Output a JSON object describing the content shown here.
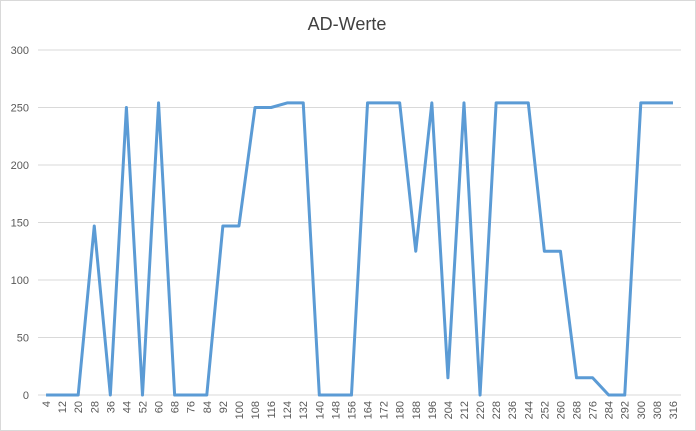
{
  "chart_data": {
    "type": "line",
    "title": "AD-Werte",
    "categories": [
      4,
      12,
      20,
      28,
      36,
      44,
      52,
      60,
      68,
      76,
      84,
      92,
      100,
      108,
      116,
      124,
      132,
      140,
      148,
      156,
      164,
      172,
      180,
      188,
      196,
      204,
      212,
      220,
      228,
      236,
      244,
      252,
      260,
      268,
      276,
      284,
      292,
      300,
      308,
      316
    ],
    "series": [
      {
        "color": "#5b9bd5",
        "values": [
          0,
          0,
          0,
          147,
          0,
          250,
          0,
          254,
          0,
          0,
          0,
          147,
          147,
          250,
          250,
          254,
          254,
          0,
          0,
          0,
          254,
          254,
          254,
          125,
          254,
          15,
          254,
          0,
          254,
          254,
          254,
          125,
          125,
          15,
          15,
          0,
          0,
          254,
          254,
          254
        ]
      }
    ],
    "ylim": [
      0,
      300
    ],
    "yticks": [
      0,
      50,
      100,
      150,
      200,
      250,
      300
    ],
    "grid": true
  }
}
